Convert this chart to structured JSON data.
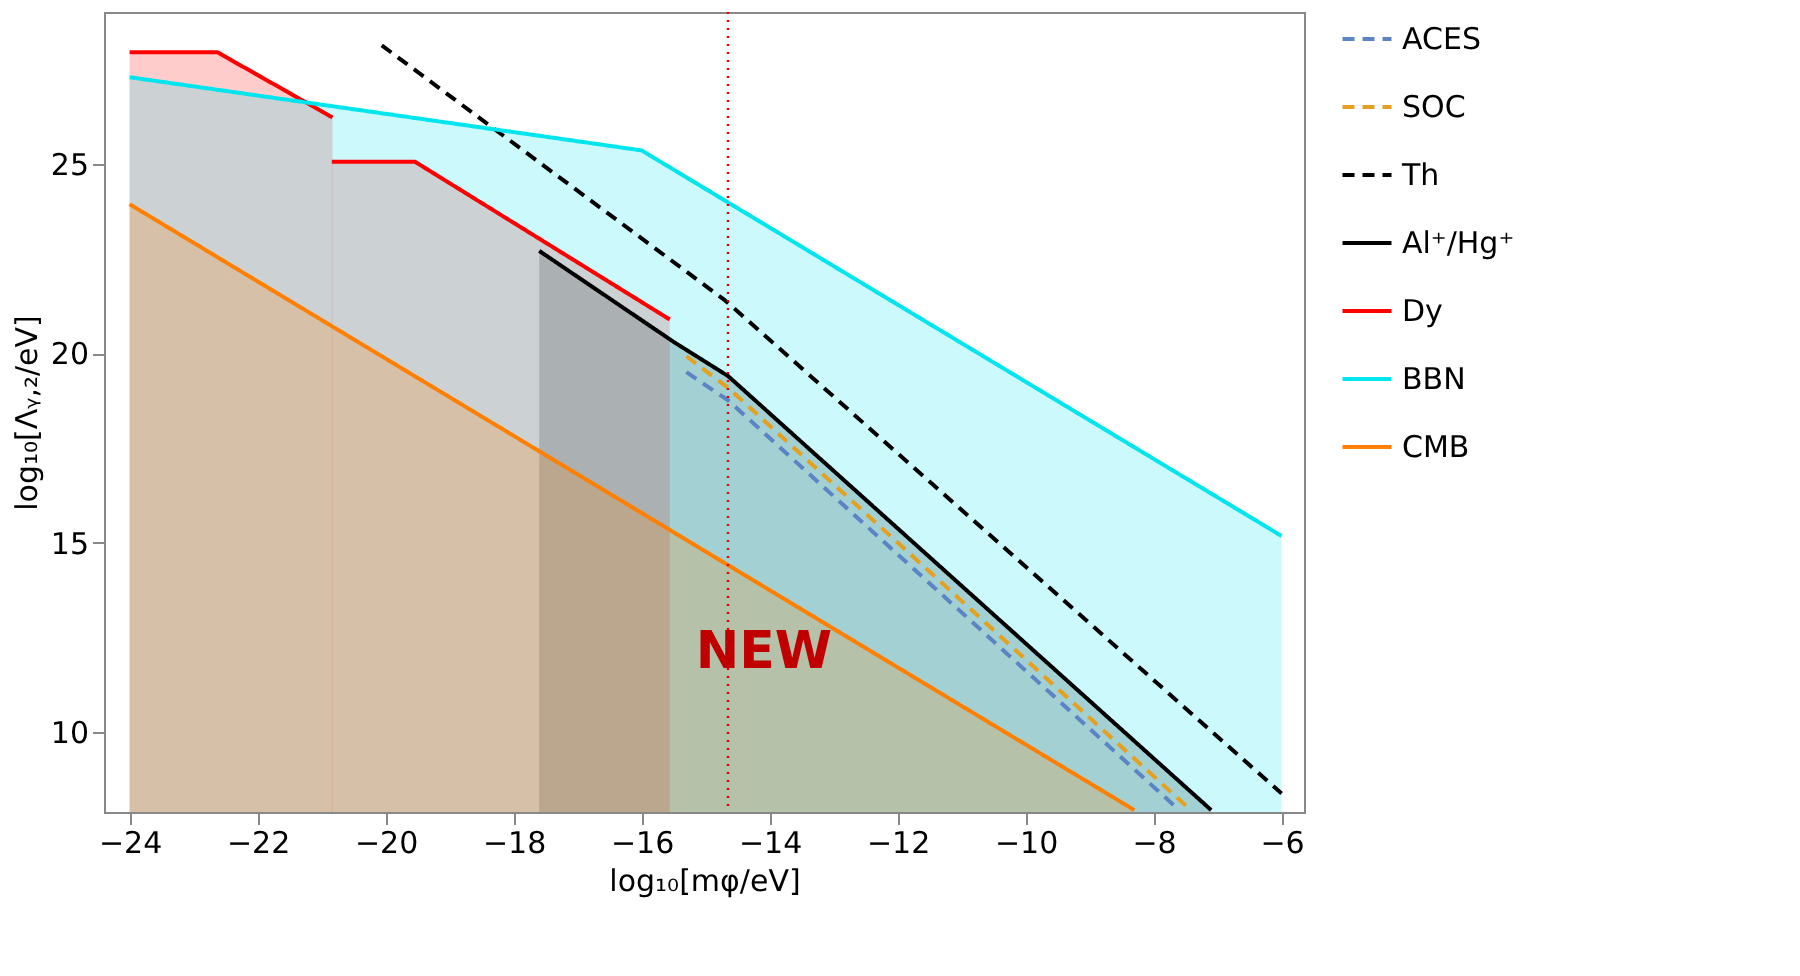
{
  "chart_data": {
    "type": "line",
    "xlabel": "log₁₀[mφ/eV]",
    "ylabel": "log₁₀[Λᵧ,₂/eV]",
    "xlim": [
      -24.4,
      -5.65
    ],
    "ylim": [
      7.9,
      29.0
    ],
    "xticks": [
      -24,
      -22,
      -20,
      -18,
      -16,
      -14,
      -12,
      -10,
      -8,
      -6
    ],
    "yticks": [
      10,
      15,
      20,
      25
    ],
    "grid": false,
    "legend": "right",
    "line_style": "solid",
    "marker": "none",
    "annotations": [
      "NEW"
    ],
    "ref_lines": [
      {
        "axis": "x",
        "value": -14.65,
        "color": "#e00000",
        "line_style": "dotted"
      }
    ],
    "series": [
      {
        "name": "ACES",
        "color": "#5b84c4",
        "line_style": "dashed",
        "x": [
          -15.3,
          -14.65,
          -7.6
        ],
        "values": [
          19.5,
          18.76,
          7.95
        ]
      },
      {
        "name": "SOC",
        "color": "#e5a020",
        "line_style": "dashed",
        "x": [
          -15.3,
          -14.65,
          -7.42
        ],
        "values": [
          19.92,
          19.09,
          7.95
        ]
      },
      {
        "name": "Th",
        "color": "#000000",
        "line_style": "dashed",
        "x": [
          -20.06,
          -14.7,
          -6.0
        ],
        "values": [
          28.12,
          21.4,
          8.39
        ]
      },
      {
        "name": "Al⁺/Hg⁺",
        "type": "area",
        "color": "#000000",
        "x": [
          -17.6,
          -15.5,
          -14.65,
          -7.1
        ],
        "values": [
          22.7,
          20.3,
          19.4,
          7.95
        ]
      },
      {
        "name": "Dy",
        "type": "area",
        "color": "#ff0000",
        "x": [
          -24.0,
          -22.63,
          -20.83,
          null,
          -20.84,
          -19.54,
          -15.56
        ],
        "values": [
          27.94,
          27.94,
          26.22,
          null,
          25.05,
          25.05,
          20.89
        ]
      },
      {
        "name": "BBN",
        "type": "area",
        "color": "#00e5ee",
        "x": [
          -24.0,
          -16.0,
          -6.0
        ],
        "values": [
          27.28,
          25.35,
          15.18
        ]
      },
      {
        "name": "CMB",
        "type": "area",
        "color": "#ff8000",
        "x": [
          -24.0,
          -8.3
        ],
        "values": [
          23.93,
          7.95
        ]
      }
    ]
  }
}
